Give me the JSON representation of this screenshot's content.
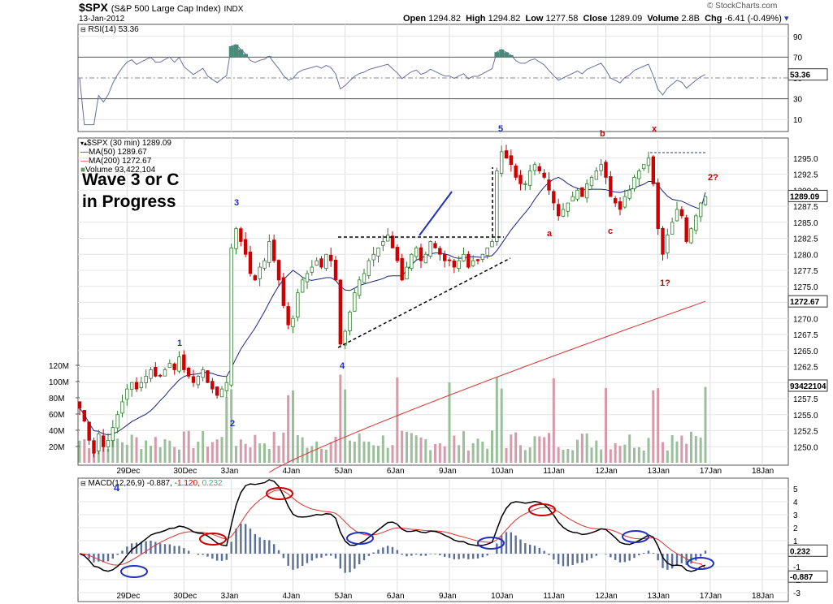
{
  "header": {
    "symbol": "$SPX",
    "name": "(S&P 500 Large Cap Index)",
    "exchange": "INDX",
    "date": "13-Jan-2012",
    "watermark": "© StockCharts.com",
    "open_label": "Open",
    "open": "1294.82",
    "high_label": "High",
    "high": "1294.82",
    "low_label": "Low",
    "low": "1277.58",
    "close_label": "Close",
    "close": "1289.09",
    "volume_label": "Volume",
    "volume": "2.8B",
    "chg_label": "Chg",
    "chg": "-6.41 (-0.49%)"
  },
  "rsi_panel": {
    "label": "RSI(14) 53.36",
    "ticks": [
      90,
      70,
      50,
      30,
      10
    ],
    "current": "53.36"
  },
  "price_panel": {
    "legend": [
      "$SPX (30 min) 1289.09",
      "MA(50) 1289.67",
      "MA(200) 1272.67",
      "Volume 93,422,104"
    ],
    "annotation_line1": "Wave 3 or C",
    "annotation_line2": "in Progress",
    "price_ticks": [
      "1295.0",
      "1292.5",
      "1290.0",
      "1287.5",
      "1285.0",
      "1282.5",
      "1280.0",
      "1277.5",
      "1275.0",
      "1272.5",
      "1270.0",
      "1267.5",
      "1265.0",
      "1262.5",
      "1260.0",
      "1257.5",
      "1255.0",
      "1252.5",
      "1250.0"
    ],
    "volume_ticks": [
      "120M",
      "100M",
      "80M",
      "60M",
      "40M",
      "20M"
    ],
    "last_price": "1289.09",
    "ma200_value": "1272.67",
    "volume_value": "93422104",
    "wave_labels": [
      {
        "text": "1",
        "color": "blue"
      },
      {
        "text": "2",
        "color": "blue"
      },
      {
        "text": "3",
        "color": "blue"
      },
      {
        "text": "4",
        "color": "blue"
      },
      {
        "text": "5",
        "color": "blue"
      },
      {
        "text": "a",
        "color": "red"
      },
      {
        "text": "b",
        "color": "red"
      },
      {
        "text": "c",
        "color": "red"
      },
      {
        "text": "x",
        "color": "red"
      },
      {
        "text": "1?",
        "color": "red"
      },
      {
        "text": "2?",
        "color": "red"
      }
    ]
  },
  "macd_panel": {
    "label_prefix": "MACD(12,26,9)",
    "macd": "-0.887,",
    "signal": "-1.120,",
    "hist": "0.232",
    "ticks": [
      "5",
      "4",
      "3",
      "2",
      "1",
      "0",
      "-1",
      "-2",
      "-3"
    ],
    "current_hist": "0.232",
    "current_macd": "-0.887",
    "extra_label": "4"
  },
  "x_axis": [
    "29Dec",
    "30Dec",
    "3Jan",
    "4Jan",
    "5Jan",
    "6Jan",
    "9Jan",
    "10Jan",
    "11Jan",
    "12Jan",
    "13Jan",
    "17Jan",
    "18Jan"
  ],
  "colors": {
    "up": "#2f7d2f",
    "down": "#cc0000",
    "ma50": "#1a237e",
    "ma200": "#e03030",
    "macd_line": "#000000",
    "signal_line": "#e03030",
    "histogram": "#5a6f9a",
    "vol_up": "#9bbf9b",
    "vol_down": "#d79aaa",
    "rsi_fill": "#4a8a7a",
    "annotation_blue": "#2030c0",
    "annotation_red": "#cc0000"
  },
  "chart_data": {
    "type": "candlestick",
    "interval": "30 min",
    "session_dates": [
      "29Dec",
      "30Dec",
      "3Jan",
      "4Jan",
      "5Jan",
      "6Jan",
      "9Jan",
      "10Jan",
      "11Jan",
      "12Jan",
      "13Jan"
    ],
    "close_series": [
      1256,
      1254,
      1251,
      1249,
      1252,
      1250,
      1251,
      1253,
      1255,
      1257,
      1259,
      1260,
      1259,
      1260,
      1261,
      1262,
      1261,
      1261,
      1262,
      1263,
      1262,
      1264,
      1262,
      1261,
      1260,
      1261,
      1262,
      1260,
      1259,
      1258,
      1259,
      1260,
      1281,
      1284,
      1282,
      1280,
      1277,
      1276,
      1278,
      1279,
      1282,
      1279,
      1276,
      1272,
      1269,
      1270,
      1274,
      1276,
      1277,
      1278,
      1279,
      1278,
      1280,
      1279,
      1276,
      1266,
      1268,
      1271,
      1274,
      1276,
      1277,
      1279,
      1280,
      1281,
      1282,
      1283,
      1281,
      1279,
      1276,
      1278,
      1280,
      1281,
      1279,
      1280,
      1282,
      1281,
      1280,
      1279,
      1279,
      1278,
      1279,
      1280,
      1278,
      1279,
      1279,
      1280,
      1281,
      1282,
      1293,
      1296,
      1295,
      1294,
      1292,
      1291,
      1291,
      1293,
      1294,
      1293,
      1292,
      1290,
      1288,
      1286,
      1287,
      1288,
      1289,
      1290,
      1289,
      1291,
      1292,
      1293,
      1294,
      1292,
      1289,
      1288,
      1287,
      1289,
      1290,
      1292,
      1293,
      1294,
      1295,
      1291,
      1284,
      1280,
      1283,
      1285,
      1287,
      1286,
      1282,
      1284,
      1286,
      1288,
      1289
    ],
    "ma50_end": 1289.67,
    "ma200_end": 1272.67,
    "rsi_end": 53.36,
    "volume_end": 93422104,
    "macd_end": -0.887,
    "signal_end": -1.12,
    "hist_end": 0.232,
    "ylim_price": [
      1247.5,
      1297.5
    ],
    "ylim_rsi": [
      0,
      100
    ],
    "ylim_macd": [
      -3.5,
      5.5
    ]
  }
}
